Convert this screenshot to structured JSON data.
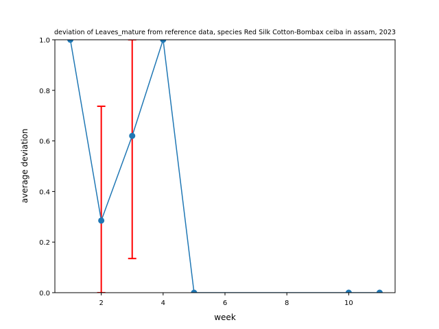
{
  "chart_data": {
    "type": "line",
    "title": "deviation of Leaves_mature from reference data, species Red Silk Cotton-Bombax ceiba in assam, 2023",
    "xlabel": "week",
    "ylabel": "average deviation",
    "xlim": [
      0.5,
      11.5
    ],
    "ylim": [
      0.0,
      1.0
    ],
    "xticks": [
      2,
      4,
      6,
      8,
      10
    ],
    "xtick_labels": [
      "2",
      "4",
      "6",
      "8",
      "10"
    ],
    "yticks": [
      0.0,
      0.2,
      0.4,
      0.6,
      0.8,
      1.0
    ],
    "ytick_labels": [
      "0.0",
      "0.2",
      "0.4",
      "0.6",
      "0.8",
      "1.0"
    ],
    "grid": false,
    "series": [
      {
        "name": "average deviation",
        "color": "#1f77b4",
        "x": [
          1,
          2,
          3,
          4,
          5,
          10,
          11
        ],
        "y": [
          1.0,
          0.285,
          0.62,
          1.0,
          0.0,
          0.0,
          0.0
        ]
      }
    ],
    "error_bars": {
      "color": "#ff0000",
      "items": [
        {
          "x": 2,
          "low": 0.0,
          "high": 0.737
        },
        {
          "x": 3,
          "low": 0.135,
          "high": 1.0
        }
      ]
    }
  }
}
